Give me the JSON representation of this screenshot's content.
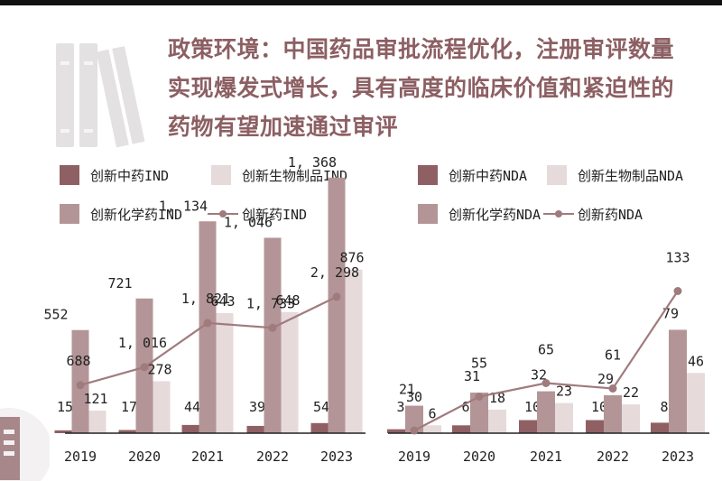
{
  "page": {
    "title_lines": [
      "政策环境：中国药品审批流程优化，注册审评数量",
      "实现爆发式增长，具有高度的临床价值和紧迫性的",
      "药物有望加速通过审评"
    ]
  },
  "colors": {
    "tcm": "#8f6063",
    "bio": "#e6dadb",
    "chem": "#b49597",
    "line": "#a07b7e",
    "title": "#8c5f63"
  },
  "chart_data": [
    {
      "type": "bar",
      "title": "",
      "categories": [
        "2019",
        "2020",
        "2021",
        "2022",
        "2023"
      ],
      "ylim": [
        0,
        2500
      ],
      "legend_placement": "top",
      "series": [
        {
          "name": "创新中药IND",
          "kind": "bar",
          "values": [
            15,
            17,
            44,
            39,
            54
          ]
        },
        {
          "name": "创新化学药IND",
          "kind": "bar",
          "values": [
            552,
            721,
            1134,
            1046,
            1368
          ]
        },
        {
          "name": "创新生物制品IND",
          "kind": "bar",
          "values": [
            121,
            278,
            643,
            648,
            876
          ]
        },
        {
          "name": "创新药IND",
          "kind": "line",
          "values": [
            688,
            1016,
            1821,
            1733,
            2298
          ]
        }
      ],
      "value_labels": {
        "tcm": [
          "15",
          "17",
          "44",
          "39",
          "54"
        ],
        "chem": [
          "552",
          "721",
          "1, 134",
          "1, 046",
          "1, 368"
        ],
        "bio": [
          "121",
          "278",
          "643",
          "648",
          "876"
        ],
        "line": [
          "688",
          "1, 016",
          "1, 821",
          "1, 733",
          "2, 298"
        ]
      }
    },
    {
      "type": "bar",
      "title": "",
      "categories": [
        "2019",
        "2020",
        "2021",
        "2022",
        "2023"
      ],
      "ylim": [
        0,
        140
      ],
      "legend_placement": "top",
      "series": [
        {
          "name": "创新中药NDA",
          "kind": "bar",
          "values": [
            3,
            6,
            10,
            10,
            8
          ]
        },
        {
          "name": "创新化学药NDA",
          "kind": "bar",
          "values": [
            21,
            31,
            32,
            29,
            79
          ]
        },
        {
          "name": "创新生物制品NDA",
          "kind": "bar",
          "values": [
            6,
            18,
            23,
            22,
            46
          ]
        },
        {
          "name": "创新药NDA",
          "kind": "line",
          "values": [
            30,
            55,
            65,
            61,
            133
          ]
        }
      ],
      "value_labels": {
        "tcm": [
          "3",
          "6",
          "10",
          "10",
          "8"
        ],
        "chem": [
          "21",
          "31",
          "32",
          "29",
          "79"
        ],
        "bio": [
          "6",
          "18",
          "23",
          "22",
          "46"
        ],
        "line": [
          "30",
          "55",
          "65",
          "61",
          "133"
        ]
      }
    }
  ]
}
